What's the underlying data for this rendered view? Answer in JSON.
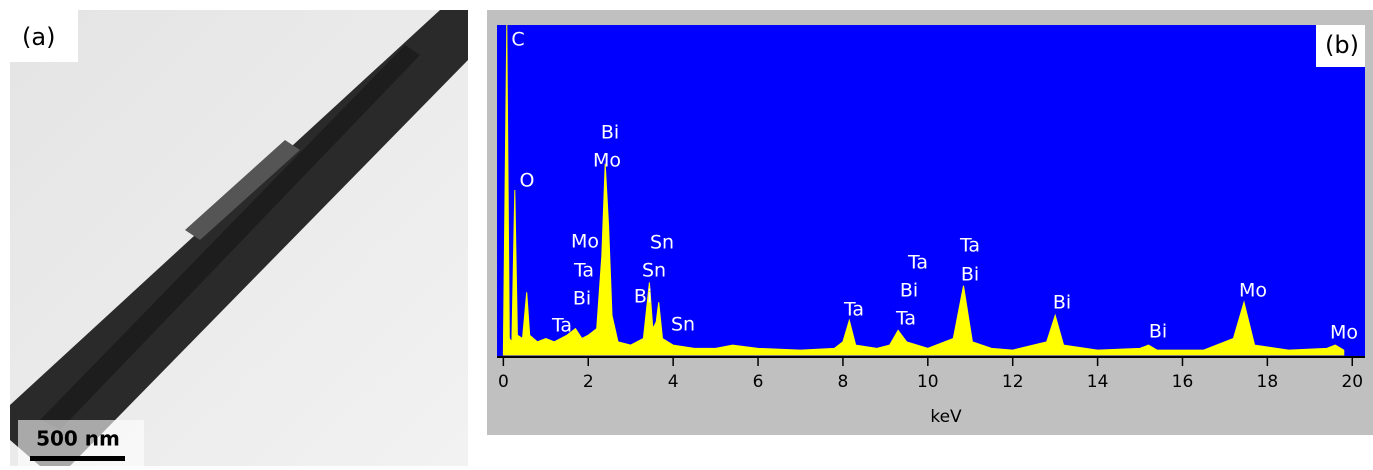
{
  "panel_a": {
    "label": "(a)",
    "scale_bar": "500 nm"
  },
  "chart_data": {
    "type": "area",
    "panel_label": "(b)",
    "x_label": "keV",
    "color": "#ffff00",
    "background": "#0000ff",
    "x": [
      0,
      0.08,
      0.14,
      0.2,
      0.27,
      0.33,
      0.45,
      0.55,
      0.62,
      0.8,
      1.0,
      1.2,
      1.5,
      1.7,
      1.85,
      2.0,
      2.2,
      2.32,
      2.4,
      2.48,
      2.56,
      2.7,
      3.0,
      3.3,
      3.44,
      3.52,
      3.6,
      3.66,
      3.75,
      4.0,
      4.5,
      5.0,
      5.4,
      6.0,
      7.0,
      7.8,
      8.0,
      8.15,
      8.3,
      8.8,
      9.1,
      9.3,
      9.5,
      10.0,
      10.6,
      10.84,
      11.05,
      11.5,
      12.0,
      12.8,
      13.0,
      13.2,
      14.0,
      15.0,
      15.2,
      15.4,
      16.5,
      17.2,
      17.45,
      17.7,
      18.5,
      19.4,
      19.6,
      19.8
    ],
    "values": [
      2,
      100,
      5,
      4,
      50,
      6,
      5,
      19,
      6,
      4,
      5,
      4,
      6,
      8,
      5,
      6,
      8,
      30,
      58,
      39,
      12,
      4,
      3,
      5,
      22,
      8,
      10,
      16,
      5,
      3,
      2,
      2,
      3,
      2,
      1.5,
      2,
      4,
      10.5,
      3,
      2,
      3,
      7.5,
      4,
      2,
      5,
      21,
      4,
      2,
      1.5,
      4,
      12,
      3,
      1.5,
      2,
      3,
      1.5,
      1.5,
      5,
      16,
      3,
      1.5,
      2,
      3,
      1.5
    ],
    "xlim": [
      -0.15,
      20.3
    ],
    "ylim": [
      0,
      100
    ],
    "xticks": [
      0,
      2,
      4,
      6,
      8,
      10,
      12,
      14,
      16,
      18,
      20
    ],
    "peak_labels": [
      "C",
      "O",
      "Bi",
      "Mo",
      "Mo",
      "Ta",
      "Bi",
      "Ta",
      "Sn",
      "Sn",
      "Bi",
      "Sn",
      "Ta",
      "Ta",
      "Bi",
      "Ta",
      "Ta",
      "Bi",
      "Bi",
      "Bi",
      "Mo",
      "Mo"
    ]
  }
}
